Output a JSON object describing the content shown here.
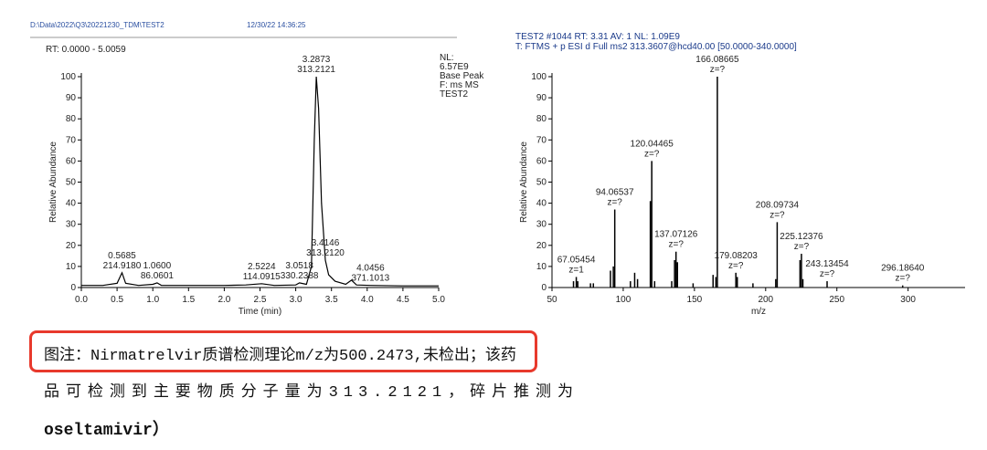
{
  "chart_data": [
    {
      "type": "line",
      "file": "D:\\Data\\2022\\Q3\\20221230_TDM\\TEST2",
      "date": "12/30/22 14:36:25",
      "range": "RT: 0.0000 - 5.0059",
      "info": [
        "NL:",
        "6.57E9",
        "Base Peak",
        "F: ms  MS",
        "TEST2"
      ],
      "xlabel": "Time (min)",
      "ylabel": "Relative Abundance",
      "color": "#000000",
      "x": [
        0,
        0.3,
        0.5,
        0.5685,
        0.62,
        0.8,
        1.0,
        1.06,
        1.12,
        1.5,
        2.0,
        2.3,
        2.5224,
        2.7,
        3.0,
        3.0518,
        3.15,
        3.22,
        3.26,
        3.2873,
        3.32,
        3.36,
        3.4146,
        3.46,
        3.55,
        3.7,
        3.78,
        3.85,
        4.0456,
        4.5,
        5.0
      ],
      "values": [
        1,
        1,
        2,
        7,
        2,
        1,
        1.5,
        2.2,
        1,
        1,
        1,
        1.2,
        1.8,
        1,
        1.2,
        2.2,
        1.5,
        10,
        70,
        100,
        85,
        40,
        13,
        6,
        3,
        1.5,
        3.5,
        1.2,
        1,
        0.8,
        0.8
      ],
      "annotations": [
        {
          "x": 0.5685,
          "y": 7,
          "label": "0.5685",
          "sublabel": "214.9180"
        },
        {
          "x": 1.06,
          "y": 2.2,
          "label": "1.0600",
          "sublabel": "86.0601"
        },
        {
          "x": 2.5224,
          "y": 1.8,
          "label": "2.5224",
          "sublabel": "114.0915"
        },
        {
          "x": 3.0518,
          "y": 2.2,
          "label": "3.0518",
          "sublabel": "330.2388"
        },
        {
          "x": 3.2873,
          "y": 100,
          "label": "3.2873",
          "sublabel": "313.2121"
        },
        {
          "x": 3.4146,
          "y": 13,
          "label": "3.4146",
          "sublabel": "313.2120"
        },
        {
          "x": 4.0456,
          "y": 1,
          "label": "4.0456",
          "sublabel": "371.1013"
        }
      ],
      "xlim": [
        0,
        5
      ],
      "xticks": [
        {
          "value": 0,
          "label": "0.0"
        },
        {
          "value": 0.5,
          "label": "0.5"
        },
        {
          "value": 1,
          "label": "1.0"
        },
        {
          "value": 1.5,
          "label": "1.5"
        },
        {
          "value": 2,
          "label": "2.0"
        },
        {
          "value": 2.5,
          "label": "2.5"
        },
        {
          "value": 3,
          "label": "3.0"
        },
        {
          "value": 3.5,
          "label": "3.5"
        },
        {
          "value": 4,
          "label": "4.0"
        },
        {
          "value": 4.5,
          "label": "4.5"
        },
        {
          "value": 5,
          "label": "5.0"
        }
      ],
      "ylim": [
        0,
        100
      ],
      "yticks": [
        0,
        10,
        20,
        30,
        40,
        50,
        60,
        70,
        80,
        90,
        100
      ]
    },
    {
      "type": "stick",
      "info": [
        "TEST2 #1044  RT: 3.31  AV: 1  NL: 1.09E9",
        "T: FTMS + p ESI d Full ms2 313.3607@hcd40.00 [50.0000-340.0000]"
      ],
      "xlabel": "m/z",
      "ylabel": "Relative Abundance",
      "color": "#000000",
      "x": [
        65.1,
        67.05454,
        68.1,
        77.04,
        79.05,
        91.05,
        93.07,
        94.06537,
        105.07,
        108.04,
        110.06,
        119.05,
        120.04465,
        122.06,
        134.06,
        136.07,
        137.07126,
        138.07,
        149.06,
        163.08,
        165.07,
        166.08665,
        179.08203,
        180.08,
        191.08,
        207.09,
        208.09734,
        224.12,
        225.12376,
        226.13,
        243.13454,
        296.1864
      ],
      "values": [
        3,
        5,
        3,
        2,
        2,
        8,
        10,
        37,
        3,
        7,
        4,
        41,
        60,
        3,
        3,
        13,
        17,
        12,
        2,
        6,
        5,
        100,
        7,
        5,
        2,
        4,
        31,
        13,
        16,
        4,
        3,
        1
      ],
      "annotations": [
        {
          "x": 67.05454,
          "y": 5,
          "label": "67.05454",
          "sublabel": "z=1"
        },
        {
          "x": 94.06537,
          "y": 37,
          "label": "94.06537",
          "sublabel": "z=?"
        },
        {
          "x": 120.04465,
          "y": 60,
          "label": "120.04465",
          "sublabel": "z=?"
        },
        {
          "x": 137.07126,
          "y": 17,
          "label": "137.07126",
          "sublabel": "z=?"
        },
        {
          "x": 166.08665,
          "y": 100,
          "label": "166.08665",
          "sublabel": "z=?"
        },
        {
          "x": 179.08203,
          "y": 7,
          "label": "179.08203",
          "sublabel": "z=?"
        },
        {
          "x": 208.09734,
          "y": 31,
          "label": "208.09734",
          "sublabel": "z=?"
        },
        {
          "x": 225.12376,
          "y": 16,
          "label": "225.12376",
          "sublabel": "z=?"
        },
        {
          "x": 243.13454,
          "y": 3,
          "label": "243.13454",
          "sublabel": "z=?"
        },
        {
          "x": 296.1864,
          "y": 1,
          "label": "296.18640",
          "sublabel": "z=?"
        }
      ],
      "xlim": [
        50,
        340
      ],
      "xticks": [
        50,
        100,
        150,
        200,
        250,
        300
      ],
      "ylim": [
        0,
        100
      ],
      "yticks": [
        0,
        10,
        20,
        30,
        40,
        50,
        60,
        70,
        80,
        90,
        100
      ]
    }
  ],
  "caption": {
    "highlight": "图注：Nirmatrelvir质谱检测理论m/z为500.2473,未检出；",
    "rest": "该药",
    "line2": "品可检测到主要物质分子量为313.2121，碎片推测为",
    "line3": "oseltamivir）"
  }
}
